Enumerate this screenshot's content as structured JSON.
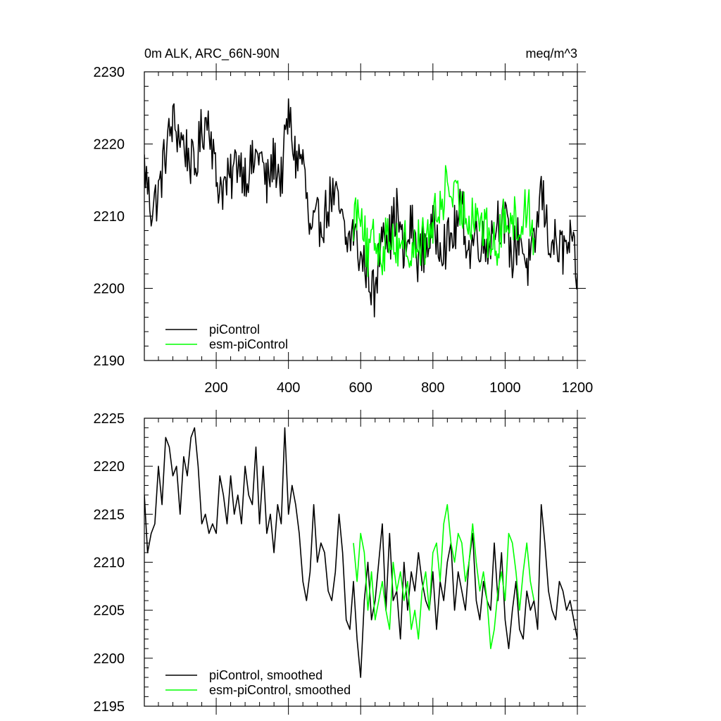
{
  "chart_data": [
    {
      "type": "line",
      "title": "0m ALK, ARC_66N-90N",
      "units": "meq/m^3",
      "xlim": [
        1,
        1200
      ],
      "ylim": [
        2190,
        2230
      ],
      "xticks": [
        200,
        400,
        600,
        800,
        1000,
        1200
      ],
      "xtick_labels": [
        "200",
        "400",
        "600",
        "800",
        "1000",
        "1200"
      ],
      "yticks": [
        2190,
        2200,
        2210,
        2220,
        2230
      ],
      "ytick_labels": [
        "2190",
        "2200",
        "2210",
        "2220",
        "2230"
      ],
      "grid": false,
      "legend": "bottom-left",
      "series": [
        {
          "name": "piControl",
          "color": "#000000",
          "x": [
            1,
            20,
            40,
            60,
            80,
            100,
            120,
            140,
            160,
            180,
            200,
            220,
            240,
            260,
            280,
            300,
            320,
            340,
            360,
            380,
            400,
            420,
            440,
            460,
            480,
            500,
            520,
            540,
            560,
            580,
            600,
            620,
            640,
            660,
            680,
            700,
            720,
            740,
            760,
            780,
            800,
            820,
            840,
            860,
            880,
            900,
            920,
            940,
            960,
            980,
            1000,
            1020,
            1040,
            1060,
            1080,
            1100,
            1120,
            1140,
            1160,
            1180,
            1200
          ],
          "y": [
            2217,
            2211,
            2213,
            2219,
            2223,
            2221,
            2219,
            2216,
            2222,
            2224,
            2215,
            2214,
            2215,
            2218,
            2216,
            2217,
            2219,
            2214,
            2218,
            2215,
            2224,
            2218,
            2218,
            2207,
            2209,
            2210,
            2213,
            2211,
            2206,
            2208,
            2204,
            2203,
            2198,
            2210,
            2207,
            2211,
            2204,
            2209,
            2204,
            2206,
            2208,
            2207,
            2206,
            2208,
            2211,
            2205,
            2208,
            2206,
            2207,
            2210,
            2209,
            2204,
            2208,
            2203,
            2205,
            2214,
            2207,
            2206,
            2205,
            2206,
            2202
          ]
        },
        {
          "name": "esm-piControl",
          "color": "#00ff00",
          "x": [
            580,
            600,
            620,
            640,
            660,
            680,
            700,
            720,
            740,
            760,
            780,
            800,
            820,
            840,
            860,
            880,
            900,
            920,
            940,
            960,
            980,
            1000,
            1020,
            1040,
            1060,
            1080
          ],
          "y": [
            2210,
            2212,
            2204,
            2207,
            2205,
            2208,
            2206,
            2207,
            2204,
            2207,
            2206,
            2209,
            2211,
            2215,
            2212,
            2211,
            2210,
            2211,
            2208,
            2207,
            2205,
            2211,
            2210,
            2208,
            2212,
            2207
          ]
        }
      ]
    },
    {
      "type": "line",
      "title": "",
      "xlim": [
        1,
        1200
      ],
      "ylim": [
        2195,
        2225
      ],
      "xticks": [
        200,
        400,
        600,
        800,
        1000,
        1200
      ],
      "yticks": [
        2195,
        2200,
        2205,
        2210,
        2215,
        2220,
        2225
      ],
      "ytick_labels": [
        "2195",
        "2200",
        "2205",
        "2210",
        "2215",
        "2220",
        "2225"
      ],
      "grid": false,
      "legend": "bottom-left",
      "series": [
        {
          "name": "piControl, smoothed",
          "color": "#000000",
          "x": [
            1,
            10,
            20,
            30,
            40,
            50,
            60,
            70,
            80,
            90,
            100,
            110,
            120,
            130,
            140,
            150,
            160,
            170,
            180,
            190,
            200,
            210,
            220,
            230,
            240,
            250,
            260,
            270,
            280,
            290,
            300,
            310,
            320,
            330,
            340,
            350,
            360,
            370,
            380,
            390,
            400,
            410,
            420,
            430,
            440,
            450,
            460,
            470,
            480,
            490,
            500,
            510,
            520,
            530,
            540,
            550,
            560,
            570,
            580,
            590,
            600,
            610,
            620,
            630,
            640,
            650,
            660,
            670,
            680,
            690,
            700,
            710,
            720,
            730,
            740,
            750,
            760,
            770,
            780,
            790,
            800,
            810,
            820,
            830,
            840,
            850,
            860,
            870,
            880,
            890,
            900,
            910,
            920,
            930,
            940,
            950,
            960,
            970,
            980,
            990,
            1000,
            1010,
            1020,
            1030,
            1040,
            1050,
            1060,
            1070,
            1080,
            1090,
            1100,
            1110,
            1120,
            1130,
            1140,
            1150,
            1160,
            1170,
            1180,
            1190,
            1200
          ],
          "y": [
            2217,
            2211,
            2213,
            2214,
            2220,
            2216,
            2223,
            2222,
            2219,
            2220,
            2215,
            2221,
            2219,
            2223,
            2224,
            2220,
            2214,
            2215,
            2213,
            2214,
            2213,
            2219,
            2217,
            2214,
            2219,
            2215,
            2217,
            2214,
            2220,
            2217,
            2216,
            2222,
            2214,
            2220,
            2213,
            2215,
            2211,
            2216,
            2214,
            2224,
            2215,
            2218,
            2216,
            2213,
            2208,
            2206,
            2209,
            2216,
            2210,
            2212,
            2211,
            2207,
            2206,
            2209,
            2215,
            2211,
            2204,
            2203,
            2208,
            2202,
            2198,
            2206,
            2210,
            2204,
            2206,
            2210,
            2214,
            2205,
            2213,
            2206,
            2207,
            2202,
            2210,
            2205,
            2209,
            2207,
            2211,
            2208,
            2206,
            2205,
            2209,
            2203,
            2208,
            2206,
            2210,
            2212,
            2205,
            2209,
            2207,
            2205,
            2210,
            2213,
            2206,
            2204,
            2208,
            2206,
            2205,
            2212,
            2206,
            2211,
            2204,
            2201,
            2205,
            2208,
            2203,
            2202,
            2207,
            2205,
            2206,
            2203,
            2216,
            2212,
            2207,
            2205,
            2204,
            2208,
            2207,
            2205,
            2206,
            2204,
            2202
          ]
        },
        {
          "name": "esm-piControl, smoothed",
          "color": "#00ff00",
          "x": [
            580,
            590,
            600,
            610,
            620,
            630,
            640,
            650,
            660,
            670,
            680,
            690,
            700,
            710,
            720,
            730,
            740,
            750,
            760,
            770,
            780,
            790,
            800,
            810,
            820,
            830,
            840,
            850,
            860,
            870,
            880,
            890,
            900,
            910,
            920,
            930,
            940,
            950,
            960,
            970,
            980,
            990,
            1000,
            1010,
            1020,
            1030,
            1040,
            1050,
            1060,
            1070,
            1080
          ],
          "y": [
            2212,
            2208,
            2213,
            2211,
            2205,
            2209,
            2204,
            2206,
            2208,
            2205,
            2203,
            2210,
            2207,
            2209,
            2206,
            2208,
            2203,
            2205,
            2202,
            2207,
            2209,
            2205,
            2211,
            2212,
            2208,
            2214,
            2216,
            2212,
            2210,
            2213,
            2212,
            2208,
            2210,
            2214,
            2210,
            2207,
            2209,
            2206,
            2201,
            2203,
            2207,
            2209,
            2206,
            2213,
            2212,
            2209,
            2205,
            2209,
            2212,
            2208,
            2206
          ]
        }
      ]
    }
  ]
}
